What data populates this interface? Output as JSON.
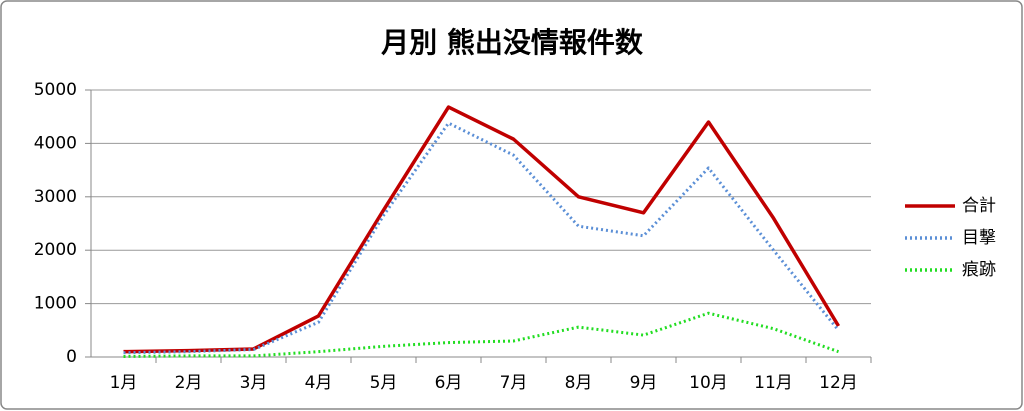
{
  "chart_data": {
    "type": "line",
    "title": "月別 熊出没情報件数",
    "categories": [
      "1月",
      "2月",
      "3月",
      "4月",
      "5月",
      "6月",
      "7月",
      "8月",
      "9月",
      "10月",
      "11月",
      "12月"
    ],
    "series": [
      {
        "name": "合計",
        "color": "#c00000",
        "style": "solid",
        "values": [
          100,
          120,
          150,
          770,
          2750,
          4680,
          4080,
          3000,
          2700,
          4400,
          2600,
          580
        ]
      },
      {
        "name": "目撃",
        "color": "#5b8fd6",
        "style": "dotted",
        "values": [
          80,
          100,
          140,
          650,
          2650,
          4380,
          3780,
          2450,
          2270,
          3540,
          2000,
          500
        ]
      },
      {
        "name": "痕跡",
        "color": "#22dd22",
        "style": "dotted",
        "values": [
          10,
          20,
          20,
          100,
          200,
          270,
          300,
          560,
          410,
          820,
          530,
          100
        ]
      }
    ],
    "ylim": [
      0,
      5000
    ],
    "yticks": [
      0,
      1000,
      2000,
      3000,
      4000,
      5000
    ],
    "grid": true,
    "legend": "right"
  }
}
